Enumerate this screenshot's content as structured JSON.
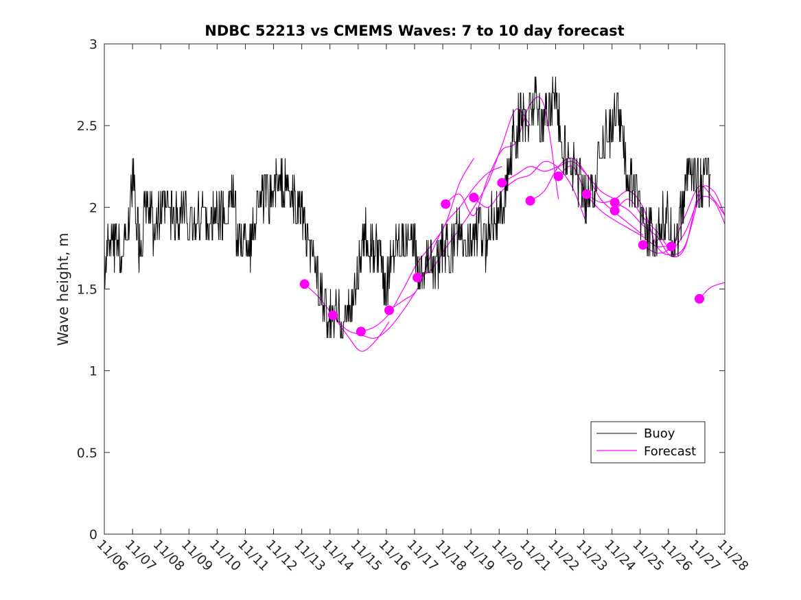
{
  "chart_data": {
    "type": "line",
    "title": "NDBC 52213 vs CMEMS Waves: 7 to 10 day forecast",
    "xlabel": "",
    "ylabel": "Wave height, m",
    "xlim": [
      0,
      22
    ],
    "ylim": [
      0,
      3
    ],
    "grid": false,
    "legend_position": "bottom-right",
    "x_tick_labels": [
      "11/06",
      "11/07",
      "11/08",
      "11/09",
      "11/10",
      "11/11",
      "11/12",
      "11/13",
      "11/14",
      "11/15",
      "11/16",
      "11/17",
      "11/18",
      "11/19",
      "11/20",
      "11/21",
      "11/22",
      "11/23",
      "11/24",
      "11/25",
      "11/26",
      "11/27",
      "11/28"
    ],
    "y_tick_labels": [
      "0",
      "0.5",
      "1",
      "1.5",
      "2",
      "2.5",
      "3"
    ],
    "y_ticks": [
      0,
      0.5,
      1,
      1.5,
      2,
      2.5,
      3
    ],
    "colors": {
      "buoy": "#000000",
      "forecast": "#ff00ff"
    },
    "series": [
      {
        "name": "Buoy",
        "x": [
          0,
          0.25,
          0.5,
          0.75,
          1,
          1.25,
          1.5,
          1.75,
          2,
          2.25,
          2.5,
          2.75,
          3,
          3.25,
          3.5,
          3.75,
          4,
          4.25,
          4.5,
          4.75,
          5,
          5.25,
          5.5,
          5.75,
          6,
          6.25,
          6.5,
          6.75,
          7,
          7.25,
          7.5,
          7.75,
          8,
          8.25,
          8.5,
          8.75,
          9,
          9.25,
          9.5,
          9.75,
          10,
          10.25,
          10.5,
          10.75,
          11,
          11.25,
          11.5,
          11.75,
          12,
          12.25,
          12.5,
          12.75,
          13,
          13.25,
          13.5,
          13.75,
          14,
          14.25,
          14.5,
          14.75,
          15,
          15.25,
          15.5,
          15.75,
          16,
          16.25,
          16.5,
          16.75,
          17,
          17.25,
          17.5,
          17.75,
          18,
          18.25,
          18.5,
          18.75,
          19,
          19.25,
          19.5,
          19.75,
          20,
          20.25,
          20.5,
          20.75,
          21,
          21.25,
          21.5
        ],
        "y": [
          1.6,
          1.8,
          1.75,
          1.75,
          2.2,
          1.75,
          2.0,
          1.9,
          1.95,
          2.0,
          1.9,
          2.0,
          1.9,
          1.9,
          2.0,
          1.85,
          2.0,
          1.9,
          2.1,
          1.8,
          1.8,
          1.8,
          2.1,
          2.05,
          2.1,
          2.15,
          2.1,
          2.0,
          2.0,
          1.7,
          1.65,
          1.4,
          1.3,
          1.35,
          1.3,
          1.4,
          1.6,
          1.8,
          1.75,
          1.7,
          1.5,
          1.75,
          1.85,
          1.8,
          1.75,
          1.6,
          1.7,
          1.6,
          1.8,
          1.7,
          1.85,
          1.75,
          1.8,
          1.9,
          1.75,
          2.0,
          1.9,
          2.1,
          2.4,
          2.55,
          2.5,
          2.7,
          2.5,
          2.6,
          2.7,
          2.3,
          2.3,
          2.2,
          2.1,
          2.05,
          2.25,
          2.45,
          2.5,
          2.6,
          2.2,
          2.15,
          2.0,
          1.9,
          1.8,
          1.95,
          1.9,
          1.8,
          2.0,
          2.3,
          2.1,
          2.2,
          2.2
        ]
      },
      {
        "name": "Forecast",
        "runs": [
          {
            "x": [
              7.1,
              7.6,
              8.1,
              8.6,
              9.1,
              9.6,
              10.1
            ],
            "y": [
              1.53,
              1.45,
              1.34,
              1.22,
              1.12,
              1.18,
              1.3
            ]
          },
          {
            "x": [
              8.1,
              8.6,
              9.1,
              9.6,
              10.1,
              10.6,
              11.1
            ],
            "y": [
              1.34,
              1.25,
              1.22,
              1.2,
              1.26,
              1.37,
              1.5
            ]
          },
          {
            "x": [
              9.1,
              9.6,
              10.1,
              10.6,
              11.1,
              11.6,
              12.1,
              12.6,
              13.1
            ],
            "y": [
              1.24,
              1.27,
              1.35,
              1.5,
              1.66,
              1.77,
              1.9,
              2.15,
              2.3
            ]
          },
          {
            "x": [
              10.1,
              10.6,
              11.1,
              11.6,
              12.1,
              12.6,
              13.1,
              13.6,
              14.1
            ],
            "y": [
              1.37,
              1.43,
              1.5,
              1.72,
              1.9,
              2.0,
              2.12,
              2.21,
              2.25
            ]
          },
          {
            "x": [
              11.1,
              11.6,
              12.1,
              12.6,
              13.1,
              13.6,
              14.1,
              14.6,
              15.1
            ],
            "y": [
              1.57,
              1.62,
              1.75,
              1.87,
              2.0,
              2.15,
              2.38,
              2.6,
              2.5
            ]
          },
          {
            "x": [
              12.1,
              12.6,
              13.1,
              13.6,
              14.1,
              14.6,
              15.1,
              15.6,
              16.1
            ],
            "y": [
              2.02,
              2.08,
              1.95,
              2.18,
              2.35,
              2.4,
              2.63,
              2.62,
              2.05
            ]
          },
          {
            "x": [
              13.1,
              13.6,
              14.1,
              14.6,
              15.1,
              15.6,
              16.1,
              16.6,
              17.1
            ],
            "y": [
              2.06,
              2.0,
              2.1,
              2.17,
              2.2,
              2.28,
              2.24,
              2.12,
              1.9
            ]
          },
          {
            "x": [
              14.1,
              14.6,
              15.1,
              15.6,
              16.1,
              16.6,
              17.1,
              17.6,
              18.1
            ],
            "y": [
              2.15,
              2.2,
              2.25,
              2.22,
              2.25,
              2.28,
              2.2,
              2.1,
              2.05
            ]
          },
          {
            "x": [
              15.1,
              15.6,
              16.1,
              16.6,
              17.1,
              17.6,
              18.1,
              18.6,
              19.1
            ],
            "y": [
              2.04,
              2.1,
              2.25,
              2.3,
              2.2,
              2.05,
              1.97,
              1.9,
              1.83
            ]
          },
          {
            "x": [
              16.1,
              16.6,
              17.1,
              17.6,
              18.1,
              18.6,
              19.1,
              19.6,
              20.1
            ],
            "y": [
              2.19,
              2.25,
              2.08,
              1.98,
              1.92,
              1.87,
              1.82,
              1.76,
              1.77
            ]
          },
          {
            "x": [
              17.1,
              17.6,
              18.1,
              18.6,
              19.1,
              19.6,
              20.1,
              20.6,
              21.1
            ],
            "y": [
              2.08,
              2.03,
              2.05,
              2.1,
              2.0,
              1.76,
              1.71,
              1.77,
              2.08
            ]
          },
          {
            "x": [
              18.1,
              18.6,
              19.1,
              19.6,
              20.1,
              20.6,
              21.1,
              21.6,
              22.0
            ],
            "y": [
              2.03,
              1.98,
              1.89,
              1.82,
              1.7,
              1.76,
              2.1,
              2.1,
              1.95
            ]
          },
          {
            "x": [
              18.1,
              18.6,
              19.1,
              19.6,
              20.1,
              20.6,
              21.1,
              21.6,
              22.0
            ],
            "y": [
              1.98,
              2.05,
              1.94,
              1.85,
              1.75,
              1.85,
              2.05,
              2.04,
              1.9
            ]
          },
          {
            "x": [
              19.1,
              19.6,
              20.1,
              20.6,
              21.1,
              21.6,
              22.0
            ],
            "y": [
              1.77,
              1.72,
              1.76,
              1.95,
              2.13,
              2.05,
              1.95
            ]
          },
          {
            "x": [
              21.1,
              21.5,
              22.0
            ],
            "y": [
              1.44,
              1.51,
              1.54
            ]
          }
        ],
        "markers_x": [
          7.1,
          8.1,
          9.1,
          10.1,
          11.1,
          12.1,
          13.1,
          14.1,
          15.1,
          16.1,
          17.1,
          18.1,
          18.1,
          19.1,
          20.1,
          21.1
        ],
        "markers_y": [
          1.53,
          1.34,
          1.24,
          1.37,
          1.57,
          2.02,
          2.06,
          2.15,
          2.04,
          2.19,
          2.08,
          2.03,
          1.98,
          1.77,
          1.76,
          1.44
        ]
      }
    ],
    "legend": [
      {
        "label": "Buoy"
      },
      {
        "label": "Forecast"
      }
    ]
  }
}
